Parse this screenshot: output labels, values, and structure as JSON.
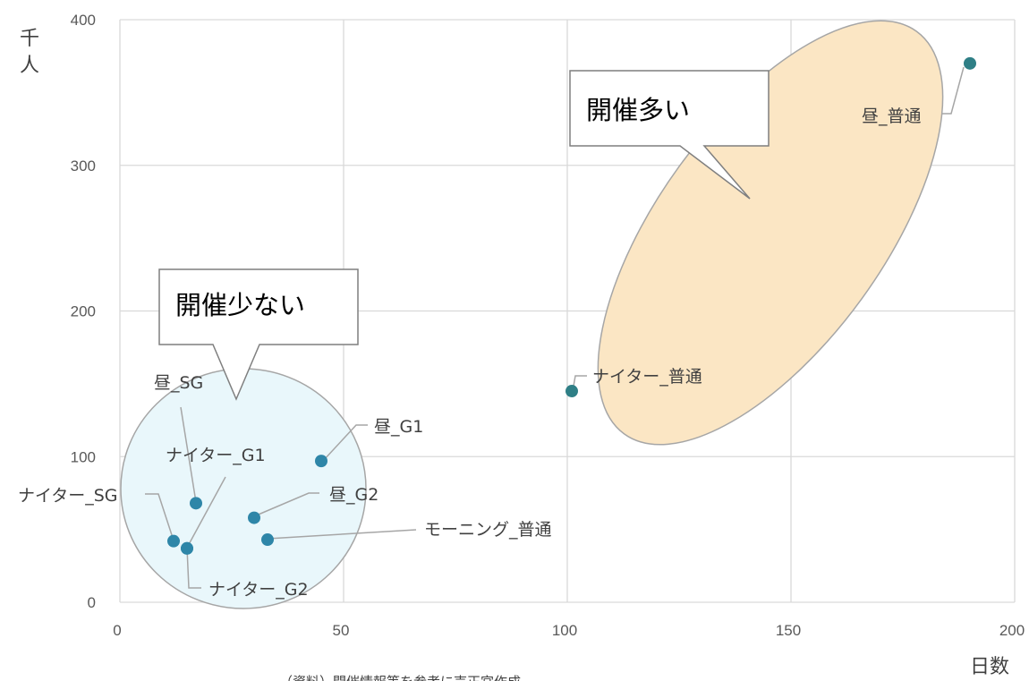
{
  "chart_data": {
    "type": "scatter",
    "xlabel": "日数",
    "ylabel": "千人",
    "xlim": [
      0,
      200
    ],
    "ylim": [
      0,
      400
    ],
    "x_ticks": [
      "0",
      "50",
      "100",
      "150",
      "200"
    ],
    "y_ticks": [
      "0",
      "100",
      "200",
      "300",
      "400"
    ],
    "grid": true,
    "points": [
      {
        "label": "昼_普通",
        "x": 190,
        "y": 370
      },
      {
        "label": "ナイター_普通",
        "x": 101,
        "y": 145
      },
      {
        "label": "昼_G1",
        "x": 45,
        "y": 97
      },
      {
        "label": "昼_SG",
        "x": 17,
        "y": 68
      },
      {
        "label": "ナイター_G1",
        "x": 15,
        "y": 37
      },
      {
        "label": "ナイター_SG",
        "x": 12,
        "y": 42
      },
      {
        "label": "昼_G2",
        "x": 30,
        "y": 58
      },
      {
        "label": "モーニング_普通",
        "x": 33,
        "y": 43
      },
      {
        "label": "ナイター_G2",
        "x": 15,
        "y": 37
      }
    ],
    "annotations": [
      "開催多い",
      "開催少ない"
    ],
    "source": "（資料）開催情報等を参考に売正宮作成"
  },
  "colors": {
    "point": "#2e86a8",
    "highlight_big": "#fbe6c4",
    "highlight_small": "#e8f7fb",
    "grid": "#d9d9d9"
  }
}
